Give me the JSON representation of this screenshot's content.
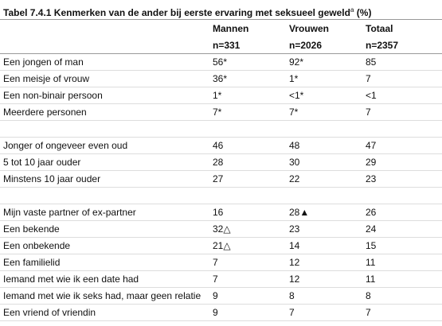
{
  "table": {
    "title": "Tabel 7.4.1 Kenmerken van de ander bij eerste ervaring met seksueel geweld",
    "title_sup": "a",
    "title_suffix": " (%)",
    "columns": [
      "Mannen",
      "Vrouwen",
      "Totaal"
    ],
    "column_n": [
      "n=331",
      "n=2026",
      "n=2357"
    ],
    "groups": [
      [
        {
          "label": "Een jongen of man",
          "cells": [
            "56*",
            "92*",
            "85"
          ]
        },
        {
          "label": "Een meisje of vrouw",
          "cells": [
            "36*",
            "1*",
            "7"
          ]
        },
        {
          "label": "Een non-binair persoon",
          "cells": [
            "1*",
            "<1*",
            "<1"
          ]
        },
        {
          "label": "Meerdere personen",
          "cells": [
            "7*",
            "7*",
            "7"
          ]
        }
      ],
      [
        {
          "label": "Jonger of ongeveer even oud",
          "cells": [
            "46",
            "48",
            "47"
          ]
        },
        {
          "label": "5 tot 10 jaar ouder",
          "cells": [
            "28",
            "30",
            "29"
          ]
        },
        {
          "label": "Minstens 10 jaar ouder",
          "cells": [
            "27",
            "22",
            "23"
          ]
        }
      ],
      [
        {
          "label": "Mijn vaste partner of ex-partner",
          "cells": [
            "16",
            "28▲",
            "26"
          ]
        },
        {
          "label": "Een bekende",
          "cells": [
            "32△",
            "23",
            "24"
          ]
        },
        {
          "label": "Een onbekende",
          "cells": [
            "21△",
            "14",
            "15"
          ]
        },
        {
          "label": "Een familielid",
          "cells": [
            "7",
            "12",
            "11"
          ]
        },
        {
          "label": "Iemand met wie ik een date had",
          "cells": [
            "7",
            "12",
            "11"
          ]
        },
        {
          "label": "Iemand met wie ik seks had, maar geen relatie",
          "cells": [
            "9",
            "8",
            "8"
          ]
        },
        {
          "label": "Een vriend of vriendin",
          "cells": [
            "9",
            "7",
            "7"
          ]
        }
      ]
    ]
  }
}
